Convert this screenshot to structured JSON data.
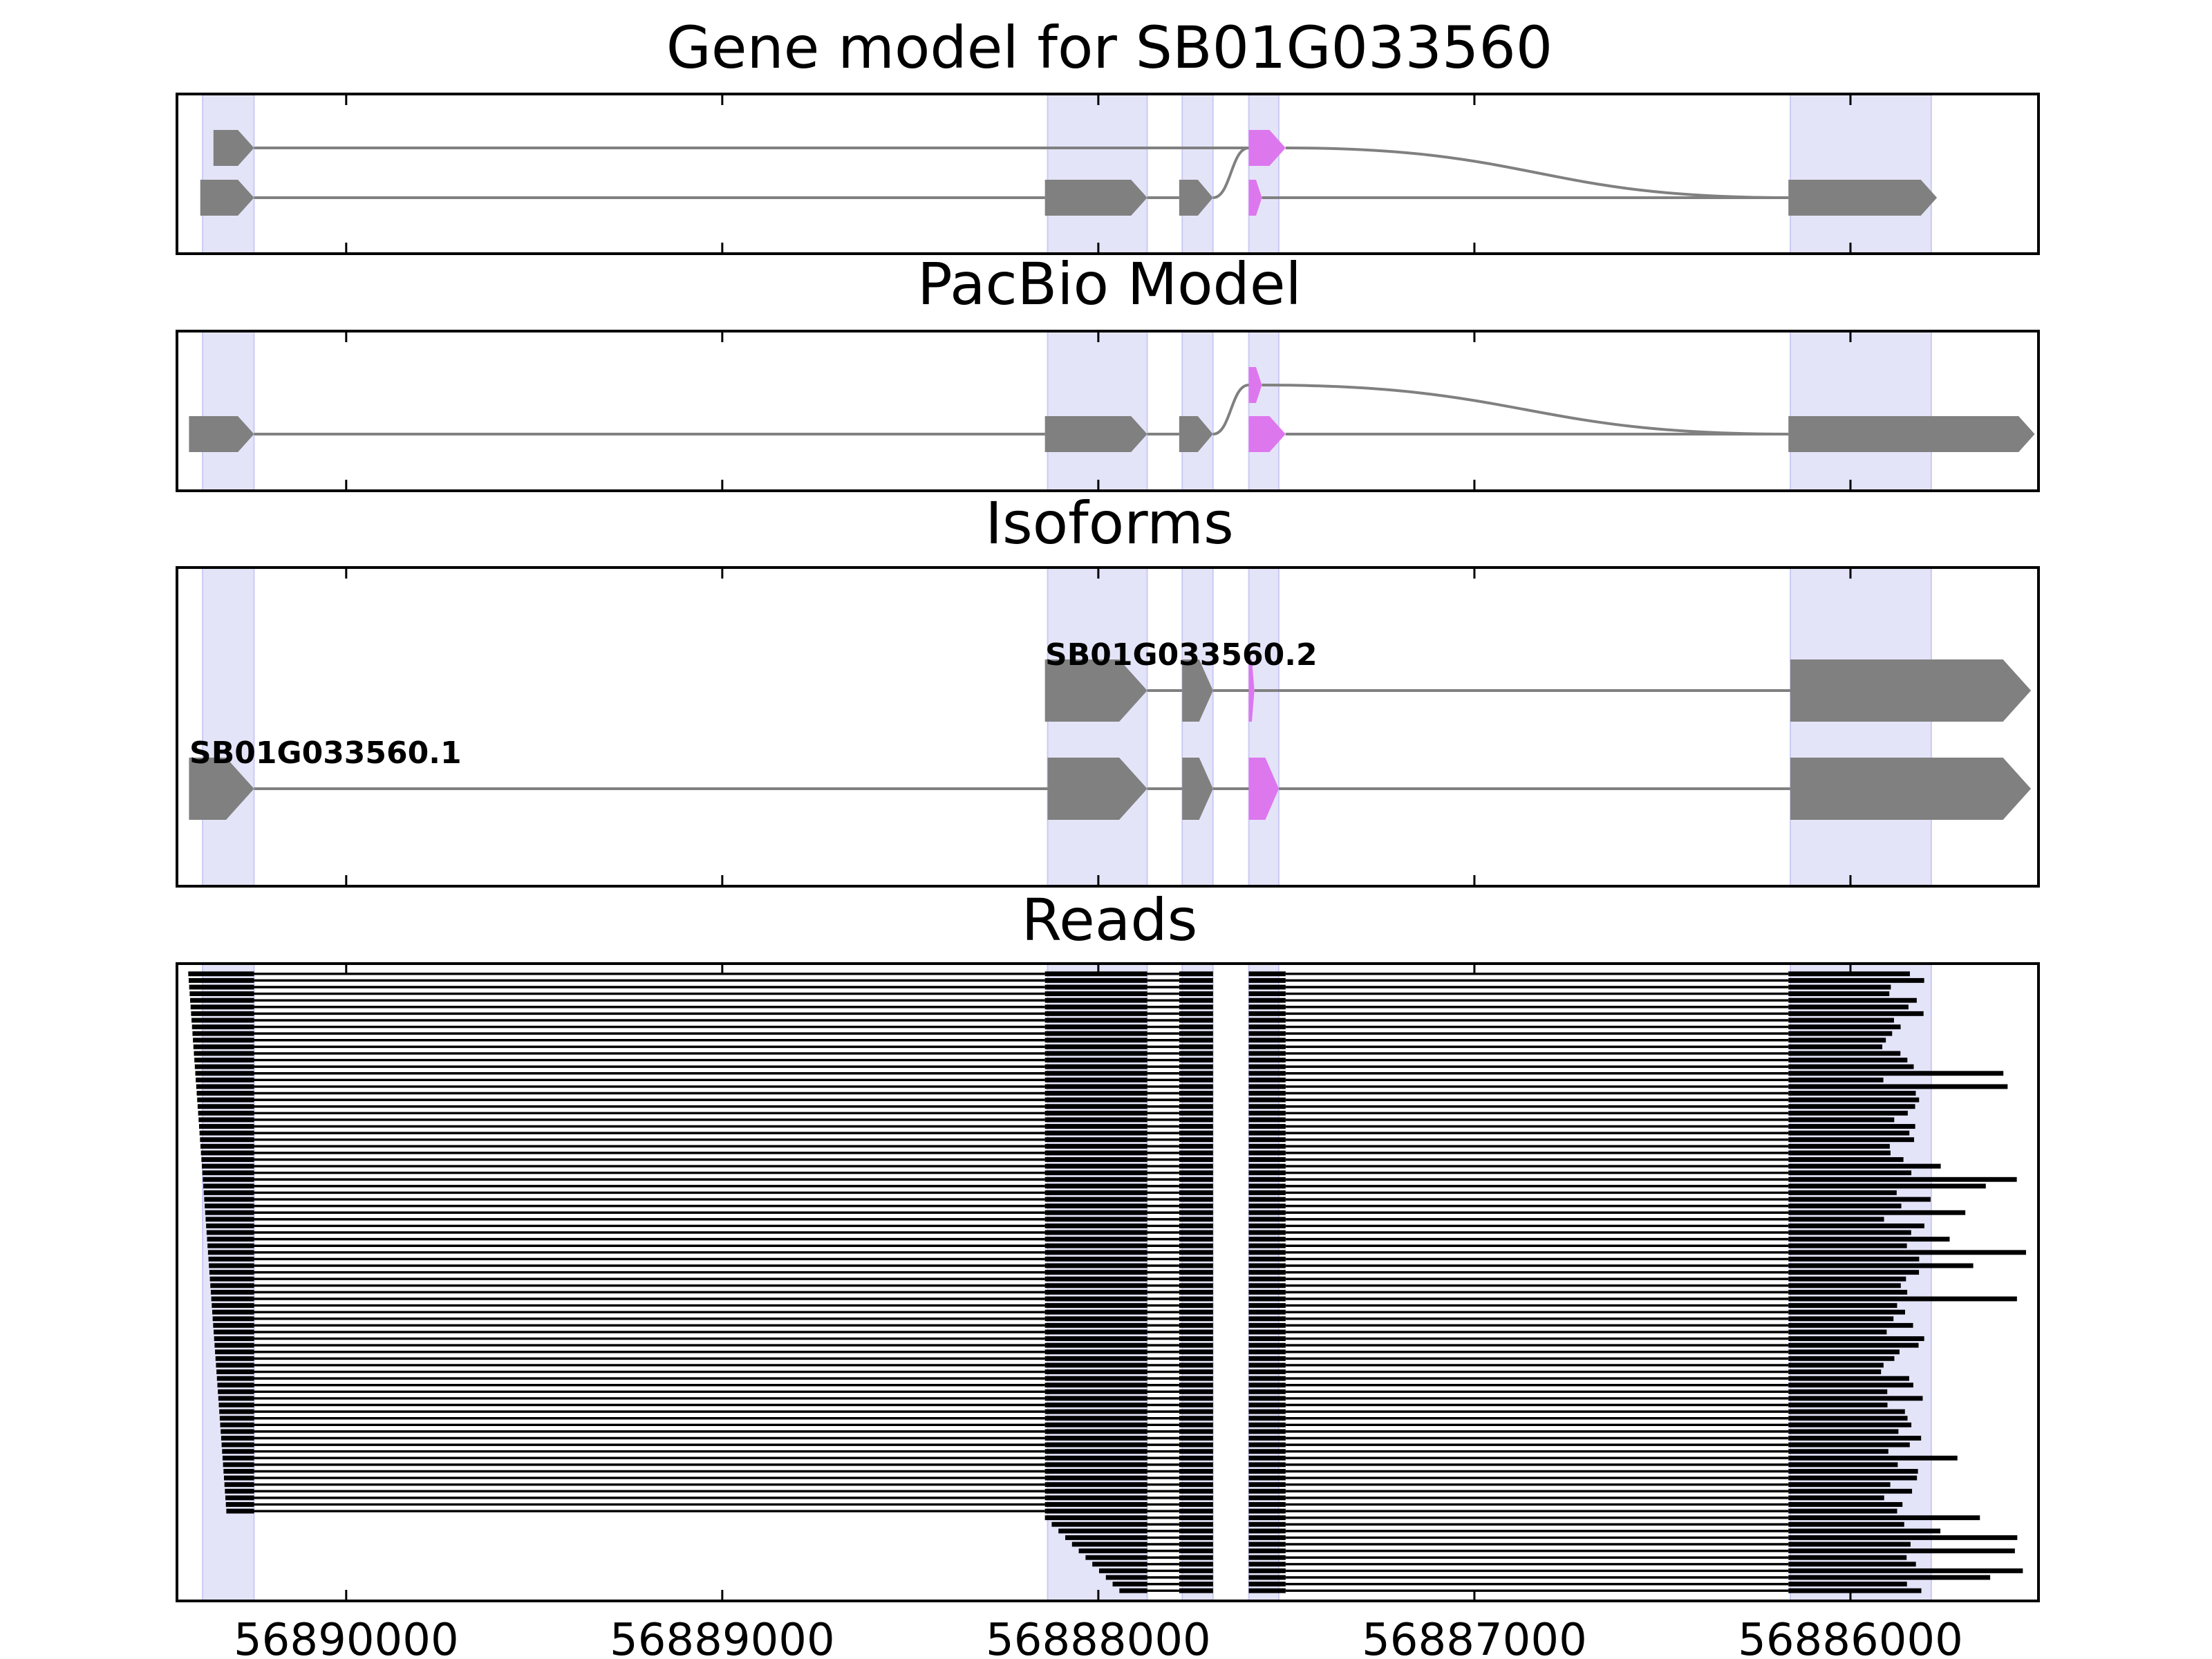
{
  "colors": {
    "exon": "#808080",
    "exon_highlight": "#dd77ee",
    "shade": "#b3b3ee",
    "read": "#000000",
    "line": "#808080"
  },
  "chart_data": {
    "type": "gene-track-plot",
    "xaxis": {
      "reversed": true,
      "range": [
        56890450,
        56885500
      ],
      "ticks": [
        56890000,
        56889000,
        56888000,
        56887000,
        56886000
      ]
    },
    "shaded_regions": [
      [
        56890382,
        56890245
      ],
      [
        56888135,
        56887870
      ],
      [
        56887777,
        56887695
      ],
      [
        56887600,
        56887520
      ],
      [
        56886160,
        56885785
      ]
    ],
    "panels": [
      {
        "title": "Gene model for SB01G033560",
        "tracks": [
          {
            "exons": [
              [
                56890353,
                56890245,
                "gray"
              ],
              [
                56887600,
                56887502,
                "pink"
              ]
            ],
            "junctions": [
              [
                56890245,
                56887600
              ],
              [
                56887502,
                56886165
              ]
            ],
            "end_exon": [
              56886165,
              56885970,
              "gray"
            ],
            "draw_end": false
          },
          {
            "exons": [
              [
                56890388,
                56890245,
                "gray"
              ],
              [
                56888142,
                56887870,
                "gray"
              ],
              [
                56887785,
                56887695,
                "gray"
              ],
              [
                56887600,
                56887565,
                "pink"
              ],
              [
                56886165,
                56885770,
                "gray"
              ]
            ],
            "junctions": []
          }
        ],
        "rows": [
          {
            "exons": [
              [
                56890353,
                56890245,
                "gray"
              ],
              [
                56887600,
                56887502,
                "pink"
              ]
            ],
            "curves": [
              [
                56890245,
                0,
                56887600,
                0
              ],
              [
                56887502,
                0,
                56886165,
                1
              ]
            ],
            "final": [
              56886165,
              56885770,
              "none"
            ]
          },
          {
            "exons": [
              [
                56890388,
                56890245,
                "gray"
              ],
              [
                56888142,
                56887870,
                "gray"
              ],
              [
                56887785,
                56887695,
                "gray"
              ],
              [
                56887600,
                56887565,
                "pink"
              ],
              [
                56886165,
                56885770,
                "gray"
              ]
            ],
            "curves": [
              [
                56887695,
                1,
                56887600,
                0
              ]
            ]
          }
        ]
      },
      {
        "title": "PacBio Model",
        "rows": [
          {
            "exons": [
              [
                56887600,
                56887565,
                "pink"
              ]
            ],
            "curves": [
              [
                56887695,
                1,
                56887600,
                0
              ],
              [
                56887565,
                0,
                56886165,
                1
              ]
            ]
          },
          {
            "exons": [
              [
                56890418,
                56890245,
                "gray"
              ],
              [
                56888142,
                56887870,
                "gray"
              ],
              [
                56887785,
                56887695,
                "gray"
              ],
              [
                56887600,
                56887502,
                "pink"
              ],
              [
                56886165,
                56885510,
                "gray"
              ]
            ],
            "curves": []
          }
        ]
      },
      {
        "title": "Isoforms",
        "isoforms": [
          {
            "label": "SB01G033560.2",
            "exons": [
              [
                56888142,
                56887870,
                "gray"
              ],
              [
                56887777,
                56887695,
                "gray"
              ],
              [
                56887600,
                56887585,
                "pink"
              ],
              [
                56886160,
                56885520,
                "gray"
              ]
            ]
          },
          {
            "label": "SB01G033560.1",
            "exons": [
              [
                56890418,
                56890245,
                "gray"
              ],
              [
                56888135,
                56887870,
                "gray"
              ],
              [
                56887777,
                56887695,
                "gray"
              ],
              [
                56887600,
                56887520,
                "pink"
              ],
              [
                56886160,
                56885520,
                "gray"
              ]
            ]
          }
        ]
      },
      {
        "title": "Reads"
      }
    ]
  }
}
